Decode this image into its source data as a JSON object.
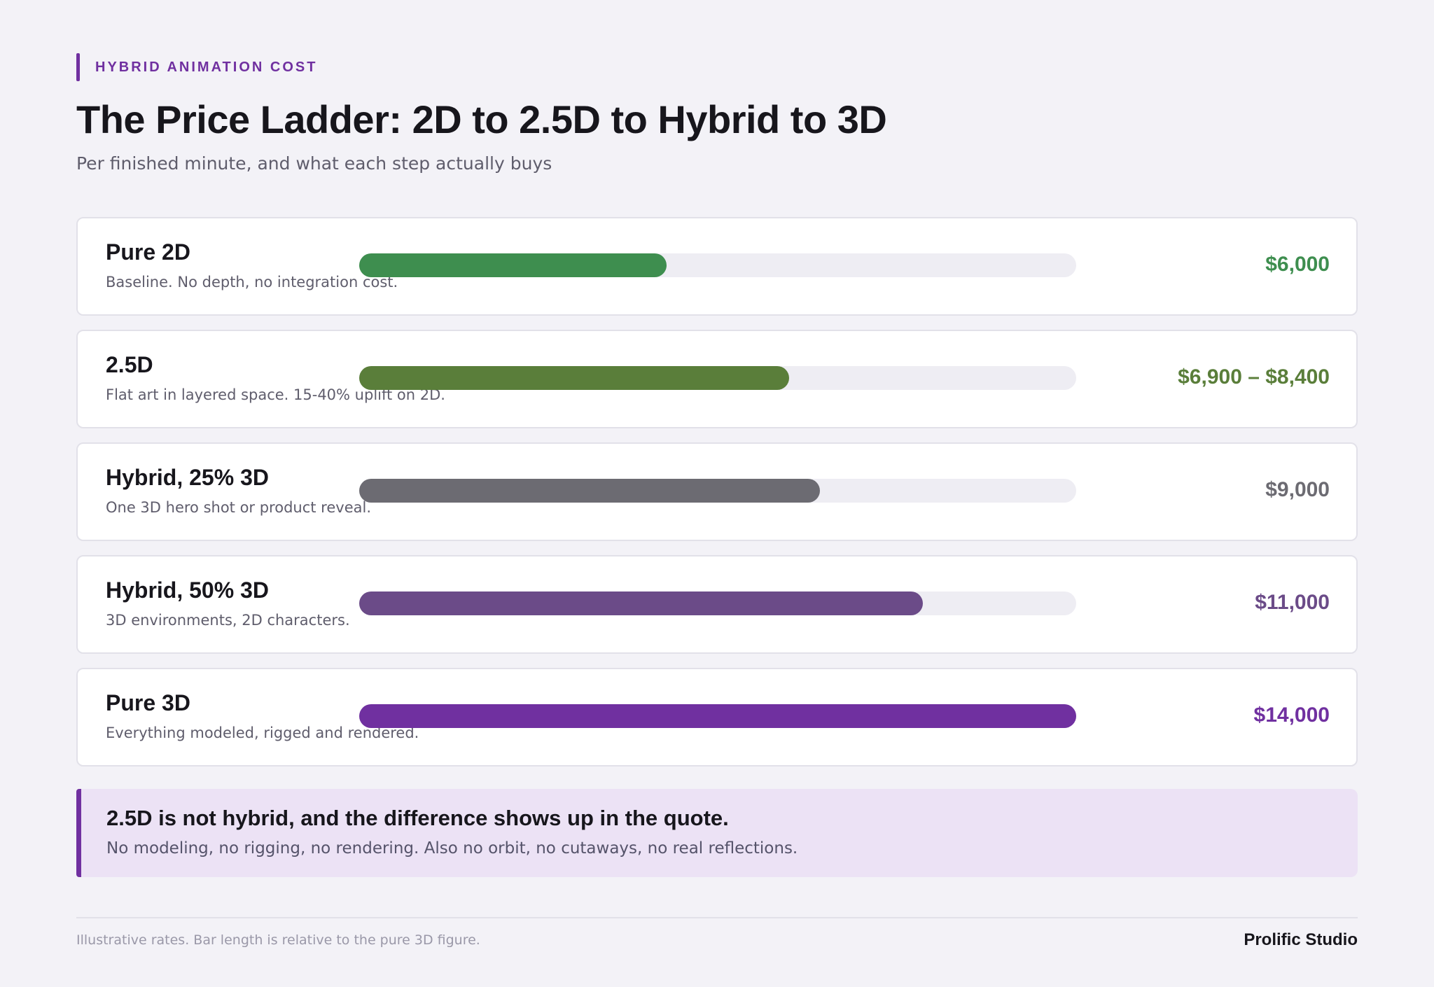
{
  "header": {
    "eyebrow": "HYBRID ANIMATION COST",
    "title": "The Price Ladder: 2D to 2.5D to Hybrid to 3D",
    "subtitle": "Per finished minute, and what each step actually buys"
  },
  "chart_data": {
    "type": "bar",
    "orientation": "horizontal",
    "title": "The Price Ladder: 2D to 2.5D to Hybrid to 3D",
    "subtitle": "Per finished minute, and what each step actually buys",
    "xlabel": "",
    "ylabel": "",
    "xlim": [
      0,
      14000
    ],
    "grid": false,
    "legend": "none",
    "categories": [
      "Pure 2D",
      "2.5D",
      "Hybrid, 25% 3D",
      "Hybrid, 50% 3D",
      "Pure 3D"
    ],
    "values": [
      6000,
      8400,
      9000,
      11000,
      14000
    ],
    "rows": [
      {
        "name": "Pure 2D",
        "description": "Baseline. No depth, no integration cost.",
        "value": 6000,
        "price_label": "$6,000",
        "color": "#3e8e4f"
      },
      {
        "name": "2.5D",
        "description": "Flat art in layered space. 15-40% uplift on 2D.",
        "value": 8400,
        "range": [
          6900,
          8400
        ],
        "price_label": "$6,900 – $8,400",
        "color": "#5a7e3a"
      },
      {
        "name": "Hybrid, 25% 3D",
        "description": "One 3D hero shot or product reveal.",
        "value": 9000,
        "price_label": "$9,000",
        "color": "#6c6b72"
      },
      {
        "name": "Hybrid, 50% 3D",
        "description": "3D environments, 2D characters.",
        "value": 11000,
        "price_label": "$11,000",
        "color": "#6b4b88"
      },
      {
        "name": "Pure 3D",
        "description": "Everything modeled, rigged and rendered.",
        "value": 14000,
        "price_label": "$14,000",
        "color": "#7030a0"
      }
    ]
  },
  "callout": {
    "title": "2.5D is not hybrid, and the difference shows up in the quote.",
    "body": "No modeling, no rigging, no rendering. Also no orbit, no cutaways, no real reflections."
  },
  "footer": {
    "note": "Illustrative rates. Bar length is relative to the pure 3D figure.",
    "brand": "Prolific Studio"
  },
  "colors": {
    "accent": "#7030a0",
    "background": "#f3f2f7",
    "track": "#eeedf3",
    "callout_background": "#ece2f5"
  }
}
